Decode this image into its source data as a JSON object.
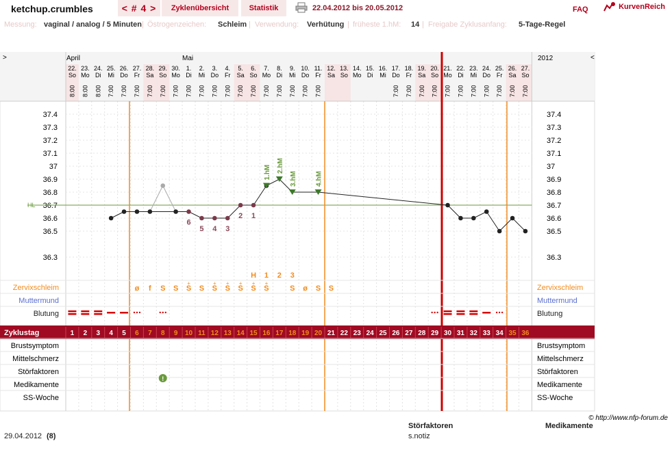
{
  "header": {
    "username": "ketchup.crumbles",
    "cycle_nav": "< # 4 >",
    "tab_overview": "Zyklenübersicht",
    "tab_stats": "Statistik",
    "date_range": "22.04.2012 bis 20.05.2012",
    "faq": "FAQ",
    "logo": "KurvenReich",
    "printer_icon": "printer-icon"
  },
  "info": {
    "messung_label": "Messung:",
    "messung_value": "vaginal / analog / 5 Minuten",
    "oestrogen_label": "Östrogenzeichen:",
    "oestrogen_value": "Schleim",
    "verwendung_label": "Verwendung:",
    "verwendung_value": "Verhütung",
    "hm_label": "früheste 1.hM:",
    "hm_value": "14",
    "freigabe_label": "Freigabe Zyklusanfang:",
    "freigabe_value": "5-Tage-Regel"
  },
  "chart": {
    "left_arrow": ">",
    "right_arrow": "<",
    "year": "2012",
    "month_april": "April",
    "month_mai": "Mai",
    "days": [
      {
        "d": "22.",
        "w": "So",
        "t": "8:00"
      },
      {
        "d": "23.",
        "w": "Mo",
        "t": "8:00"
      },
      {
        "d": "24.",
        "w": "Di",
        "t": "8:00"
      },
      {
        "d": "25.",
        "w": "Mi",
        "t": "7:00"
      },
      {
        "d": "26.",
        "w": "Do",
        "t": "7:00"
      },
      {
        "d": "27.",
        "w": "Fr",
        "t": "7:00"
      },
      {
        "d": "28.",
        "w": "Sa",
        "t": "7:00"
      },
      {
        "d": "29.",
        "w": "So",
        "t": "7:00"
      },
      {
        "d": "30.",
        "w": "Mo",
        "t": "7:00"
      },
      {
        "d": "1.",
        "w": "Di",
        "t": "7:00"
      },
      {
        "d": "2.",
        "w": "Mi",
        "t": "7:00"
      },
      {
        "d": "3.",
        "w": "Do",
        "t": "7:00"
      },
      {
        "d": "4.",
        "w": "Fr",
        "t": "7:00"
      },
      {
        "d": "5.",
        "w": "Sa",
        "t": "7:00"
      },
      {
        "d": "6.",
        "w": "So",
        "t": "7:00"
      },
      {
        "d": "7.",
        "w": "Mo",
        "t": "7:00"
      },
      {
        "d": "8.",
        "w": "Di",
        "t": "7:00"
      },
      {
        "d": "9.",
        "w": "Mi",
        "t": "7:00"
      },
      {
        "d": "10.",
        "w": "Do",
        "t": "7:00"
      },
      {
        "d": "11.",
        "w": "Fr",
        "t": "7:00"
      },
      {
        "d": "12.",
        "w": "Sa",
        "t": ""
      },
      {
        "d": "13.",
        "w": "So",
        "t": ""
      },
      {
        "d": "14.",
        "w": "Mo",
        "t": ""
      },
      {
        "d": "15.",
        "w": "Di",
        "t": ""
      },
      {
        "d": "16.",
        "w": "Mi",
        "t": ""
      },
      {
        "d": "17.",
        "w": "Do",
        "t": "7:00"
      },
      {
        "d": "18.",
        "w": "Fr",
        "t": "7:00"
      },
      {
        "d": "19.",
        "w": "Sa",
        "t": "7:00"
      },
      {
        "d": "20.",
        "w": "So",
        "t": "7:00"
      },
      {
        "d": "21.",
        "w": "Mo",
        "t": "7:00"
      },
      {
        "d": "22.",
        "w": "Di",
        "t": "7:00"
      },
      {
        "d": "23.",
        "w": "Mi",
        "t": "7:00"
      },
      {
        "d": "24.",
        "w": "Do",
        "t": "7:00"
      },
      {
        "d": "25.",
        "w": "Fr",
        "t": "7:00"
      },
      {
        "d": "26.",
        "w": "Sa",
        "t": "7:00"
      },
      {
        "d": "27.",
        "w": "So",
        "t": "7:00"
      }
    ],
    "y_ticks": [
      "37.4",
      "37.3",
      "37.2",
      "37.1",
      "37",
      "36.9",
      "36.8",
      "36.7",
      "36.6",
      "36.5",
      "36.3"
    ],
    "hl_label": "HL",
    "temperatures": [
      null,
      null,
      null,
      36.6,
      36.65,
      36.65,
      36.65,
      36.85,
      36.65,
      36.65,
      36.6,
      36.6,
      36.6,
      36.7,
      36.7,
      36.85,
      36.9,
      36.8,
      null,
      36.8,
      null,
      null,
      null,
      null,
      null,
      null,
      null,
      null,
      null,
      36.7,
      36.6,
      36.6,
      36.65,
      36.5,
      36.6,
      36.5
    ],
    "excluded_index": 7,
    "hl_value": 36.7,
    "count_labels": [
      {
        "i": 9,
        "t": "6"
      },
      {
        "i": 10,
        "t": "5"
      },
      {
        "i": 11,
        "t": "4"
      },
      {
        "i": 12,
        "t": "3"
      },
      {
        "i": 13,
        "t": "2"
      },
      {
        "i": 14,
        "t": "1"
      }
    ],
    "hm_labels": [
      {
        "i": 15,
        "t": "1.hM"
      },
      {
        "i": 16,
        "t": "2.hM"
      },
      {
        "i": 17,
        "t": "3.hM"
      },
      {
        "i": 19,
        "t": "4.hM"
      }
    ],
    "peak_labels": [
      {
        "i": 14,
        "t": "H"
      },
      {
        "i": 15,
        "t": "1"
      },
      {
        "i": 16,
        "t": "2"
      },
      {
        "i": 17,
        "t": "3"
      }
    ],
    "zervix_label": "Zervixschleim",
    "zervix": [
      "",
      "",
      "",
      "",
      "",
      "ø",
      "f",
      "S",
      "S",
      "S+",
      "S",
      "S+",
      "S+",
      "S+",
      "S+",
      "S+",
      "",
      "S",
      "ø",
      "S",
      "S"
    ],
    "muttermund_label": "Muttermund",
    "blutung_label": "Blutung",
    "blutung": [
      "heavy",
      "heavy",
      "heavy",
      "medium",
      "medium",
      "light",
      "",
      "light",
      "",
      "",
      "",
      "",
      "",
      "",
      "",
      "",
      "",
      "",
      "",
      "",
      "",
      "",
      "",
      "",
      "",
      "",
      "",
      "",
      "light",
      "heavy",
      "heavy",
      "heavy",
      "medium",
      "light",
      "",
      ""
    ],
    "zyklustag_label": "Zyklustag",
    "cycle_days": [
      "1",
      "2",
      "3",
      "4",
      "5",
      "6",
      "7",
      "8",
      "9",
      "10",
      "11",
      "12",
      "13",
      "14",
      "15",
      "16",
      "17",
      "18",
      "19",
      "20",
      "21",
      "22",
      "23",
      "24",
      "25",
      "26",
      "27",
      "28",
      "29",
      "30",
      "31",
      "32",
      "33",
      "34",
      "35",
      "36"
    ],
    "brust_label": "Brustsymptom",
    "mittel_label": "Mittelschmerz",
    "stoer_label": "Störfaktoren",
    "medi_label": "Medikamente",
    "ss_label": "SS-Woche",
    "stoer_marker_index": 7,
    "copyright": "© http://www.nfp-forum.de"
  },
  "footer": {
    "date": "29.04.2012",
    "count": "(8)",
    "stoer_header": "Störfaktoren",
    "medi_header": "Medikamente",
    "note": "s.notiz"
  },
  "colors": {
    "accent": "#b3001b",
    "orange": "#f28c1e",
    "green": "#6a9a3c",
    "zyklusbar": "#a00a22",
    "weekend": "#f7e4e4",
    "mutter": "#5b6fd0"
  }
}
